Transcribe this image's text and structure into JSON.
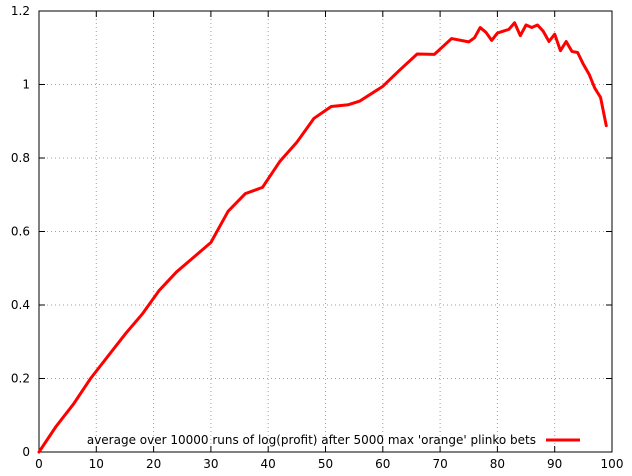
{
  "chart_data": {
    "type": "line",
    "title": "",
    "xlabel": "",
    "ylabel": "",
    "xlim": [
      0,
      100
    ],
    "ylim": [
      0,
      1.2
    ],
    "xticks": [
      0,
      10,
      20,
      30,
      40,
      50,
      60,
      70,
      80,
      90,
      100
    ],
    "xtick_labels": [
      "0",
      "10",
      "20",
      "30",
      "40",
      "50",
      "60",
      "70",
      "80",
      "90",
      "100"
    ],
    "yticks": [
      0,
      0.2,
      0.4,
      0.6,
      0.8,
      1.0,
      1.2
    ],
    "ytick_labels": [
      "0",
      "0.2",
      "0.4",
      "0.6",
      "0.8",
      "1",
      "1.2"
    ],
    "grid": true,
    "legend_position": "bottom-right",
    "series": [
      {
        "name": "average over 10000 runs of log(profit) after 5000 max 'orange' plinko bets",
        "color": "#ff0000",
        "x": [
          0,
          3,
          6,
          9,
          12,
          15,
          18,
          21,
          24,
          27,
          30,
          33,
          36,
          39,
          42,
          45,
          48,
          51,
          54,
          56,
          58,
          60,
          63,
          66,
          69,
          72,
          75,
          76,
          77,
          78,
          79,
          80,
          81,
          82,
          83,
          84,
          85,
          86,
          87,
          88,
          89,
          90,
          91,
          92,
          93,
          94,
          95,
          96,
          97,
          98,
          99
        ],
        "y": [
          0,
          0.07,
          0.13,
          0.2,
          0.26,
          0.32,
          0.375,
          0.44,
          0.49,
          0.53,
          0.57,
          0.655,
          0.703,
          0.72,
          0.79,
          0.843,
          0.908,
          0.94,
          0.945,
          0.955,
          0.975,
          0.995,
          1.04,
          1.083,
          1.082,
          1.125,
          1.116,
          1.127,
          1.155,
          1.142,
          1.12,
          1.14,
          1.145,
          1.15,
          1.168,
          1.133,
          1.162,
          1.155,
          1.162,
          1.145,
          1.117,
          1.137,
          1.092,
          1.117,
          1.09,
          1.087,
          1.055,
          1.028,
          0.99,
          0.965,
          0.888
        ]
      }
    ]
  }
}
